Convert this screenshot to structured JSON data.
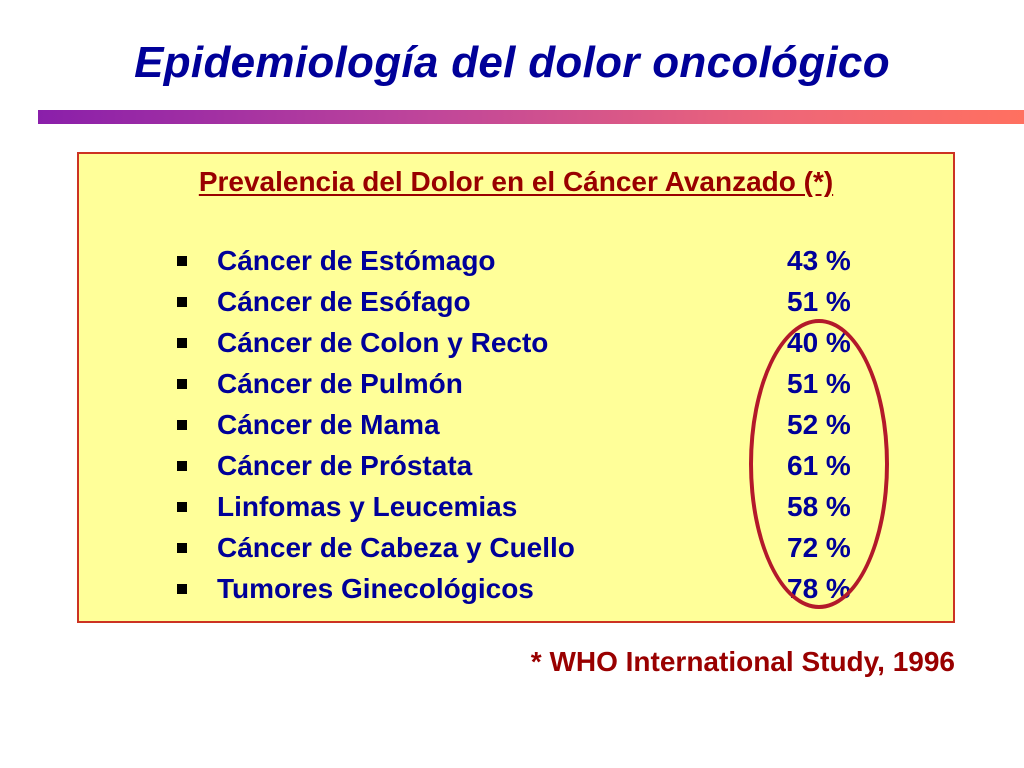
{
  "title": "Epidemiología del dolor oncológico",
  "panel": {
    "heading": "Prevalencia del Dolor en el Cáncer Avanzado (*)",
    "items": [
      {
        "label": "Cáncer de Estómago",
        "value": "43 %"
      },
      {
        "label": "Cáncer de Esófago",
        "value": "51 %"
      },
      {
        "label": "Cáncer de Colon y Recto",
        "value": "40 %"
      },
      {
        "label": "Cáncer de Pulmón",
        "value": "51 %"
      },
      {
        "label": "Cáncer de Mama",
        "value": "52 %"
      },
      {
        "label": "Cáncer de Próstata",
        "value": "61 %"
      },
      {
        "label": "Linfomas y Leucemias",
        "value": "58 %"
      },
      {
        "label": "Cáncer de Cabeza y Cuello",
        "value": "72 %"
      },
      {
        "label": "Tumores Ginecológicos",
        "value": "78 %"
      }
    ]
  },
  "footnote": "* WHO International Study, 1996",
  "colors": {
    "title": "#000099",
    "panel_background": "#ffff99",
    "panel_border": "#cc3322",
    "heading": "#990000",
    "list_text": "#000099",
    "highlight_circle": "#b3192a",
    "footnote": "#990000"
  }
}
